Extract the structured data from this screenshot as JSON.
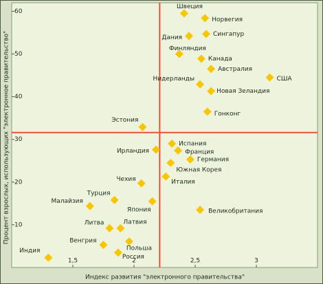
{
  "chart_data": {
    "type": "scatter",
    "x_label": "Индекс развития \"электронного правительства\"",
    "y_label": "Процент взрослых, использующих \"электронное правительство\"",
    "categories": [
      "Швеция",
      "Норвегия",
      "Дания",
      "Сингапур",
      "Финляндия",
      "Канада",
      "Австралия",
      "Нидерланды",
      "Новая Зеландия",
      "США",
      "Гонконг",
      "Эстония",
      "Испания",
      "Ирландия",
      "Франция",
      "Германия",
      "Южная Корея",
      "Италия",
      "Чехия",
      "Турция",
      "Малайзия",
      "Япония",
      "Великобритания",
      "Литва",
      "Латвия",
      "Польша",
      "Венгрия",
      "Россия",
      "Индия"
    ],
    "x": [
      2.41,
      2.58,
      2.45,
      2.59,
      2.37,
      2.55,
      2.63,
      2.54,
      2.63,
      3.11,
      2.6,
      2.07,
      2.31,
      2.18,
      2.36,
      2.46,
      2.3,
      2.26,
      2.06,
      1.84,
      1.64,
      2.15,
      2.54,
      1.8,
      1.89,
      1.96,
      1.75,
      1.87,
      1.3
    ],
    "values": [
      59.5,
      58.4,
      54.2,
      54.7,
      50.0,
      48.9,
      46.5,
      42.9,
      41.3,
      44.5,
      36.5,
      32.9,
      29.0,
      27.6,
      27.4,
      25.3,
      24.5,
      21.3,
      19.7,
      15.8,
      14.4,
      15.5,
      13.5,
      9.2,
      9.2,
      6.1,
      5.3,
      3.5,
      2.3
    ],
    "color": "#f7c600",
    "reference_lines": {
      "x": 2.21,
      "y": 31.6,
      "color": "#e8503a"
    },
    "xlim": [
      1.0,
      3.5
    ],
    "ylim": [
      0,
      62
    ],
    "xticks": [
      {
        "value": 1.5,
        "label": "1,5"
      },
      2,
      {
        "value": 2.5,
        "label": "2,5"
      },
      3
    ],
    "yticks": [
      10,
      20,
      30,
      40,
      50,
      60
    ]
  }
}
